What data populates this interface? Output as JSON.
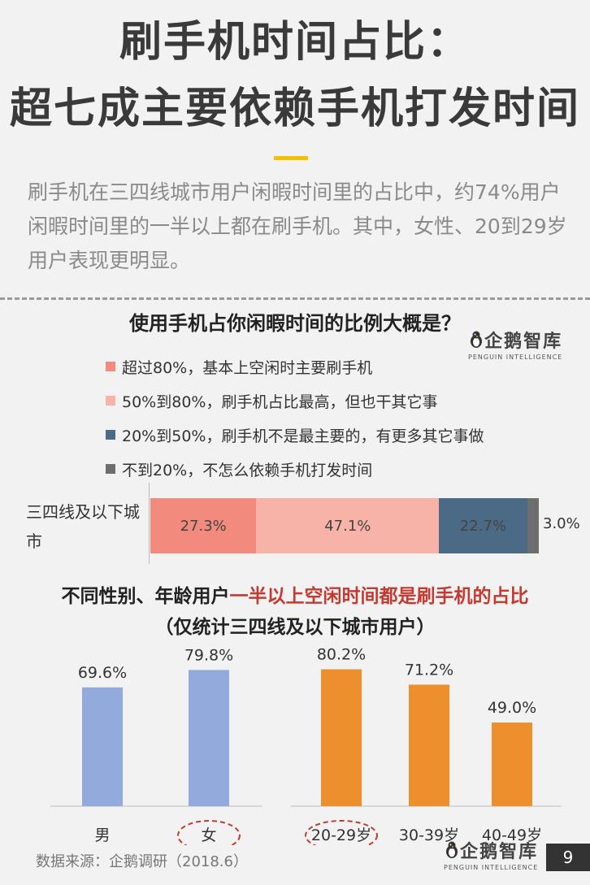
{
  "header": {
    "title_line1": "刷手机时间占比：",
    "title_line2": "超七成主要依赖手机打发时间",
    "intro": "刷手机在三四线城市用户闲暇时间里的占比中，约74%用户闲暇时间里的一半以上都在刷手机。其中，女性、20到29岁用户表现更明显。"
  },
  "logo": {
    "main": "企鹅智库",
    "sub": "PENGUIN INTELLIGENCE"
  },
  "colors": {
    "c1": "#f28b7e",
    "c2": "#f7b3a8",
    "c3": "#4a6a85",
    "c4": "#6e6e6e",
    "gender": "#93aadd",
    "age": "#ee8f2d"
  },
  "chart_data": [
    {
      "type": "bar",
      "orientation": "horizontal",
      "stacked": true,
      "title": "使用手机占你闲暇时间的比例大概是？",
      "categories": [
        "三四线及以下城市"
      ],
      "series": [
        {
          "name": "超过80%，基本上空闲时主要刷手机",
          "values": [
            27.3
          ],
          "label": "27.3%"
        },
        {
          "name": "50%到80%，刷手机占比最高，但也干其它事",
          "values": [
            47.1
          ],
          "label": "47.1%"
        },
        {
          "name": "20%到50%，刷手机不是最主要的，有更多其它事做",
          "values": [
            22.7
          ],
          "label": "22.7%"
        },
        {
          "name": "不到20%，不怎么依赖手机打发时间",
          "values": [
            3.0
          ],
          "label": "3.0%"
        }
      ],
      "legend_position": "top-left"
    },
    {
      "type": "bar",
      "title_part1": "不同性别、年龄用户",
      "title_highlight": "一半以上空闲时间都是刷手机的占比",
      "subtitle": "（仅统计三四线及以下城市用户）",
      "categories": [
        "男",
        "女",
        "20-29岁",
        "30-39岁",
        "40-49岁"
      ],
      "values": [
        69.6,
        79.8,
        80.2,
        71.2,
        49.0
      ],
      "labels": [
        "69.6%",
        "79.8%",
        "80.2%",
        "71.2%",
        "49.0%"
      ],
      "groups": [
        "gender",
        "gender",
        "age",
        "age",
        "age"
      ],
      "highlighted": [
        "女",
        "20-29岁"
      ],
      "ylim": [
        0,
        100
      ]
    }
  ],
  "footer": {
    "source": "数据来源：企鹅调研（2018.6）",
    "page": "9"
  }
}
